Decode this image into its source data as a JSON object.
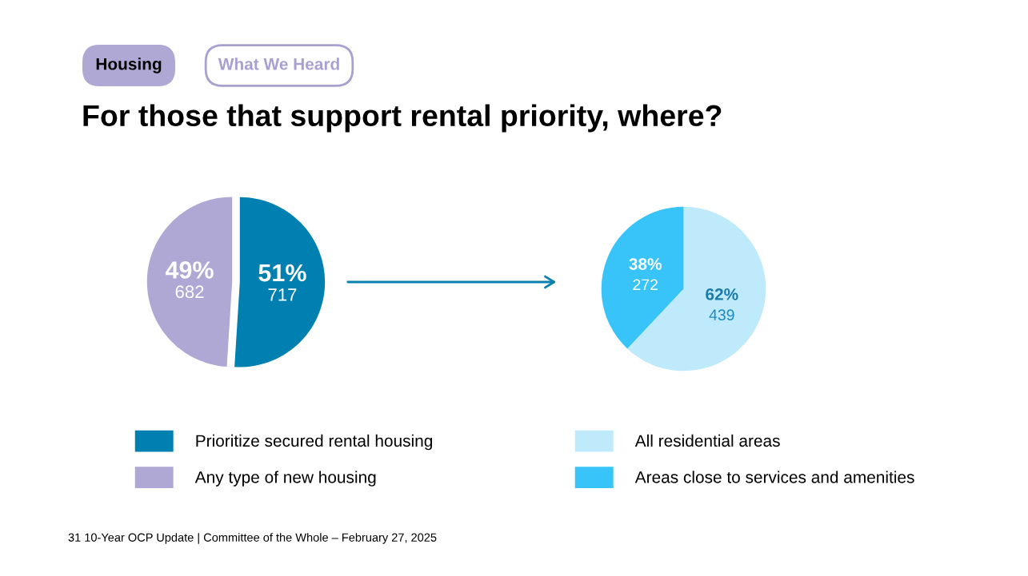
{
  "chart_data": [
    {
      "type": "pie",
      "title": "For those that support rental priority, where?",
      "categories": [
        "Prioritize secured rental housing",
        "Any type of new housing"
      ],
      "values": [
        51,
        49
      ],
      "value_labels": [
        "51%\n717",
        "49%\n682"
      ],
      "colors": [
        "#0080b0",
        "#b0a8d4"
      ],
      "legend": "bottom",
      "annotations": [
        "Housing",
        "What We Heard",
        "31 10-Year OCP Update | Committee of the Whole – February 27, 2025"
      ]
    },
    {
      "type": "pie",
      "categories": [
        "All residential areas",
        "Areas close to services and amenities"
      ],
      "values": [
        62,
        38
      ],
      "value_labels": [
        "62%\n439",
        "38%\n272"
      ],
      "colors": [
        "#bfeafb",
        "#38c4f8"
      ],
      "legend": "bottom"
    }
  ]
}
